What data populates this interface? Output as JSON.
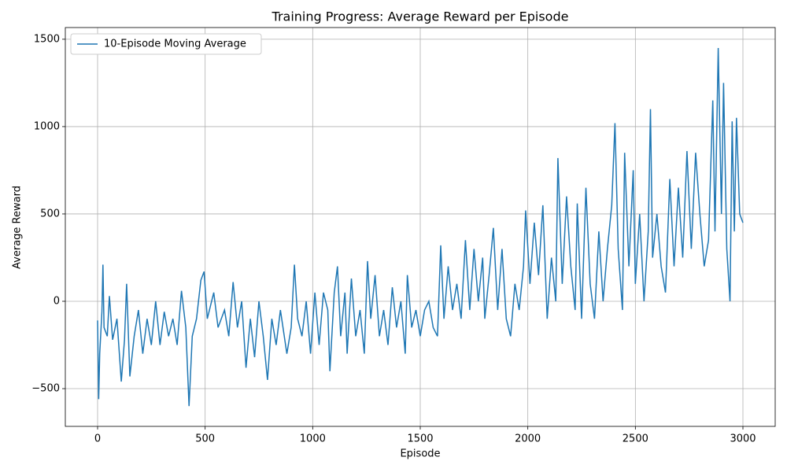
{
  "chart_data": {
    "type": "line",
    "title": "Training Progress: Average Reward per Episode",
    "x_label": "Episode",
    "y_label": "Average Reward",
    "xlim": [
      -150,
      3150
    ],
    "ylim": [
      -716,
      1567
    ],
    "xticks": [
      0,
      500,
      1000,
      1500,
      2000,
      2500,
      3000
    ],
    "yticks": [
      {
        "value": -500,
        "label": "−500"
      },
      0,
      500,
      1000,
      1500
    ],
    "grid": true,
    "legend": "upper left",
    "series": [
      {
        "name": "10-Episode Moving Average",
        "color": "#1f77b4",
        "x": [
          0,
          5,
          10,
          20,
          25,
          30,
          45,
          55,
          70,
          90,
          110,
          125,
          135,
          150,
          170,
          190,
          210,
          230,
          250,
          270,
          290,
          310,
          330,
          350,
          370,
          390,
          410,
          425,
          440,
          460,
          480,
          495,
          510,
          540,
          560,
          590,
          610,
          630,
          650,
          670,
          690,
          710,
          730,
          750,
          770,
          790,
          810,
          830,
          850,
          880,
          900,
          915,
          930,
          950,
          970,
          990,
          1010,
          1030,
          1050,
          1070,
          1080,
          1100,
          1115,
          1130,
          1150,
          1160,
          1180,
          1200,
          1220,
          1240,
          1255,
          1270,
          1290,
          1310,
          1330,
          1350,
          1370,
          1390,
          1410,
          1430,
          1440,
          1460,
          1480,
          1500,
          1520,
          1540,
          1560,
          1580,
          1595,
          1610,
          1630,
          1650,
          1670,
          1690,
          1710,
          1730,
          1750,
          1770,
          1790,
          1800,
          1820,
          1840,
          1860,
          1880,
          1900,
          1920,
          1940,
          1960,
          1980,
          1990,
          2010,
          2030,
          2050,
          2070,
          2090,
          2110,
          2130,
          2140,
          2160,
          2180,
          2200,
          2220,
          2230,
          2250,
          2270,
          2290,
          2310,
          2330,
          2350,
          2370,
          2390,
          2405,
          2420,
          2440,
          2450,
          2470,
          2490,
          2500,
          2520,
          2540,
          2560,
          2570,
          2580,
          2600,
          2620,
          2640,
          2660,
          2680,
          2700,
          2720,
          2740,
          2760,
          2780,
          2800,
          2820,
          2840,
          2860,
          2870,
          2885,
          2900,
          2910,
          2925,
          2940,
          2950,
          2960,
          2970,
          2985,
          3000
        ],
        "values": [
          -110,
          -560,
          -300,
          -60,
          210,
          -150,
          -200,
          30,
          -220,
          -100,
          -460,
          -220,
          100,
          -430,
          -200,
          -50,
          -300,
          -100,
          -250,
          0,
          -250,
          -60,
          -200,
          -100,
          -250,
          60,
          -150,
          -600,
          -200,
          -100,
          120,
          170,
          -100,
          50,
          -150,
          -50,
          -200,
          110,
          -150,
          0,
          -380,
          -100,
          -320,
          0,
          -200,
          -450,
          -100,
          -250,
          -50,
          -300,
          -150,
          210,
          -100,
          -200,
          0,
          -300,
          50,
          -250,
          50,
          -50,
          -400,
          50,
          200,
          -200,
          50,
          -300,
          130,
          -200,
          -50,
          -300,
          230,
          -100,
          150,
          -200,
          -50,
          -250,
          80,
          -150,
          0,
          -300,
          150,
          -150,
          -50,
          -200,
          -50,
          0,
          -150,
          -200,
          320,
          -100,
          200,
          -50,
          100,
          -100,
          350,
          -50,
          300,
          0,
          250,
          -100,
          150,
          420,
          -50,
          300,
          -100,
          -200,
          100,
          -50,
          200,
          520,
          100,
          450,
          150,
          550,
          -100,
          250,
          0,
          820,
          100,
          600,
          200,
          -50,
          560,
          -100,
          650,
          100,
          -100,
          400,
          0,
          300,
          550,
          1020,
          300,
          -50,
          850,
          200,
          750,
          100,
          500,
          0,
          400,
          1100,
          250,
          500,
          200,
          50,
          700,
          200,
          650,
          250,
          860,
          300,
          850,
          500,
          200,
          350,
          1150,
          400,
          1450,
          500,
          1250,
          300,
          0,
          1030,
          400,
          1050,
          500,
          450
        ]
      }
    ]
  }
}
